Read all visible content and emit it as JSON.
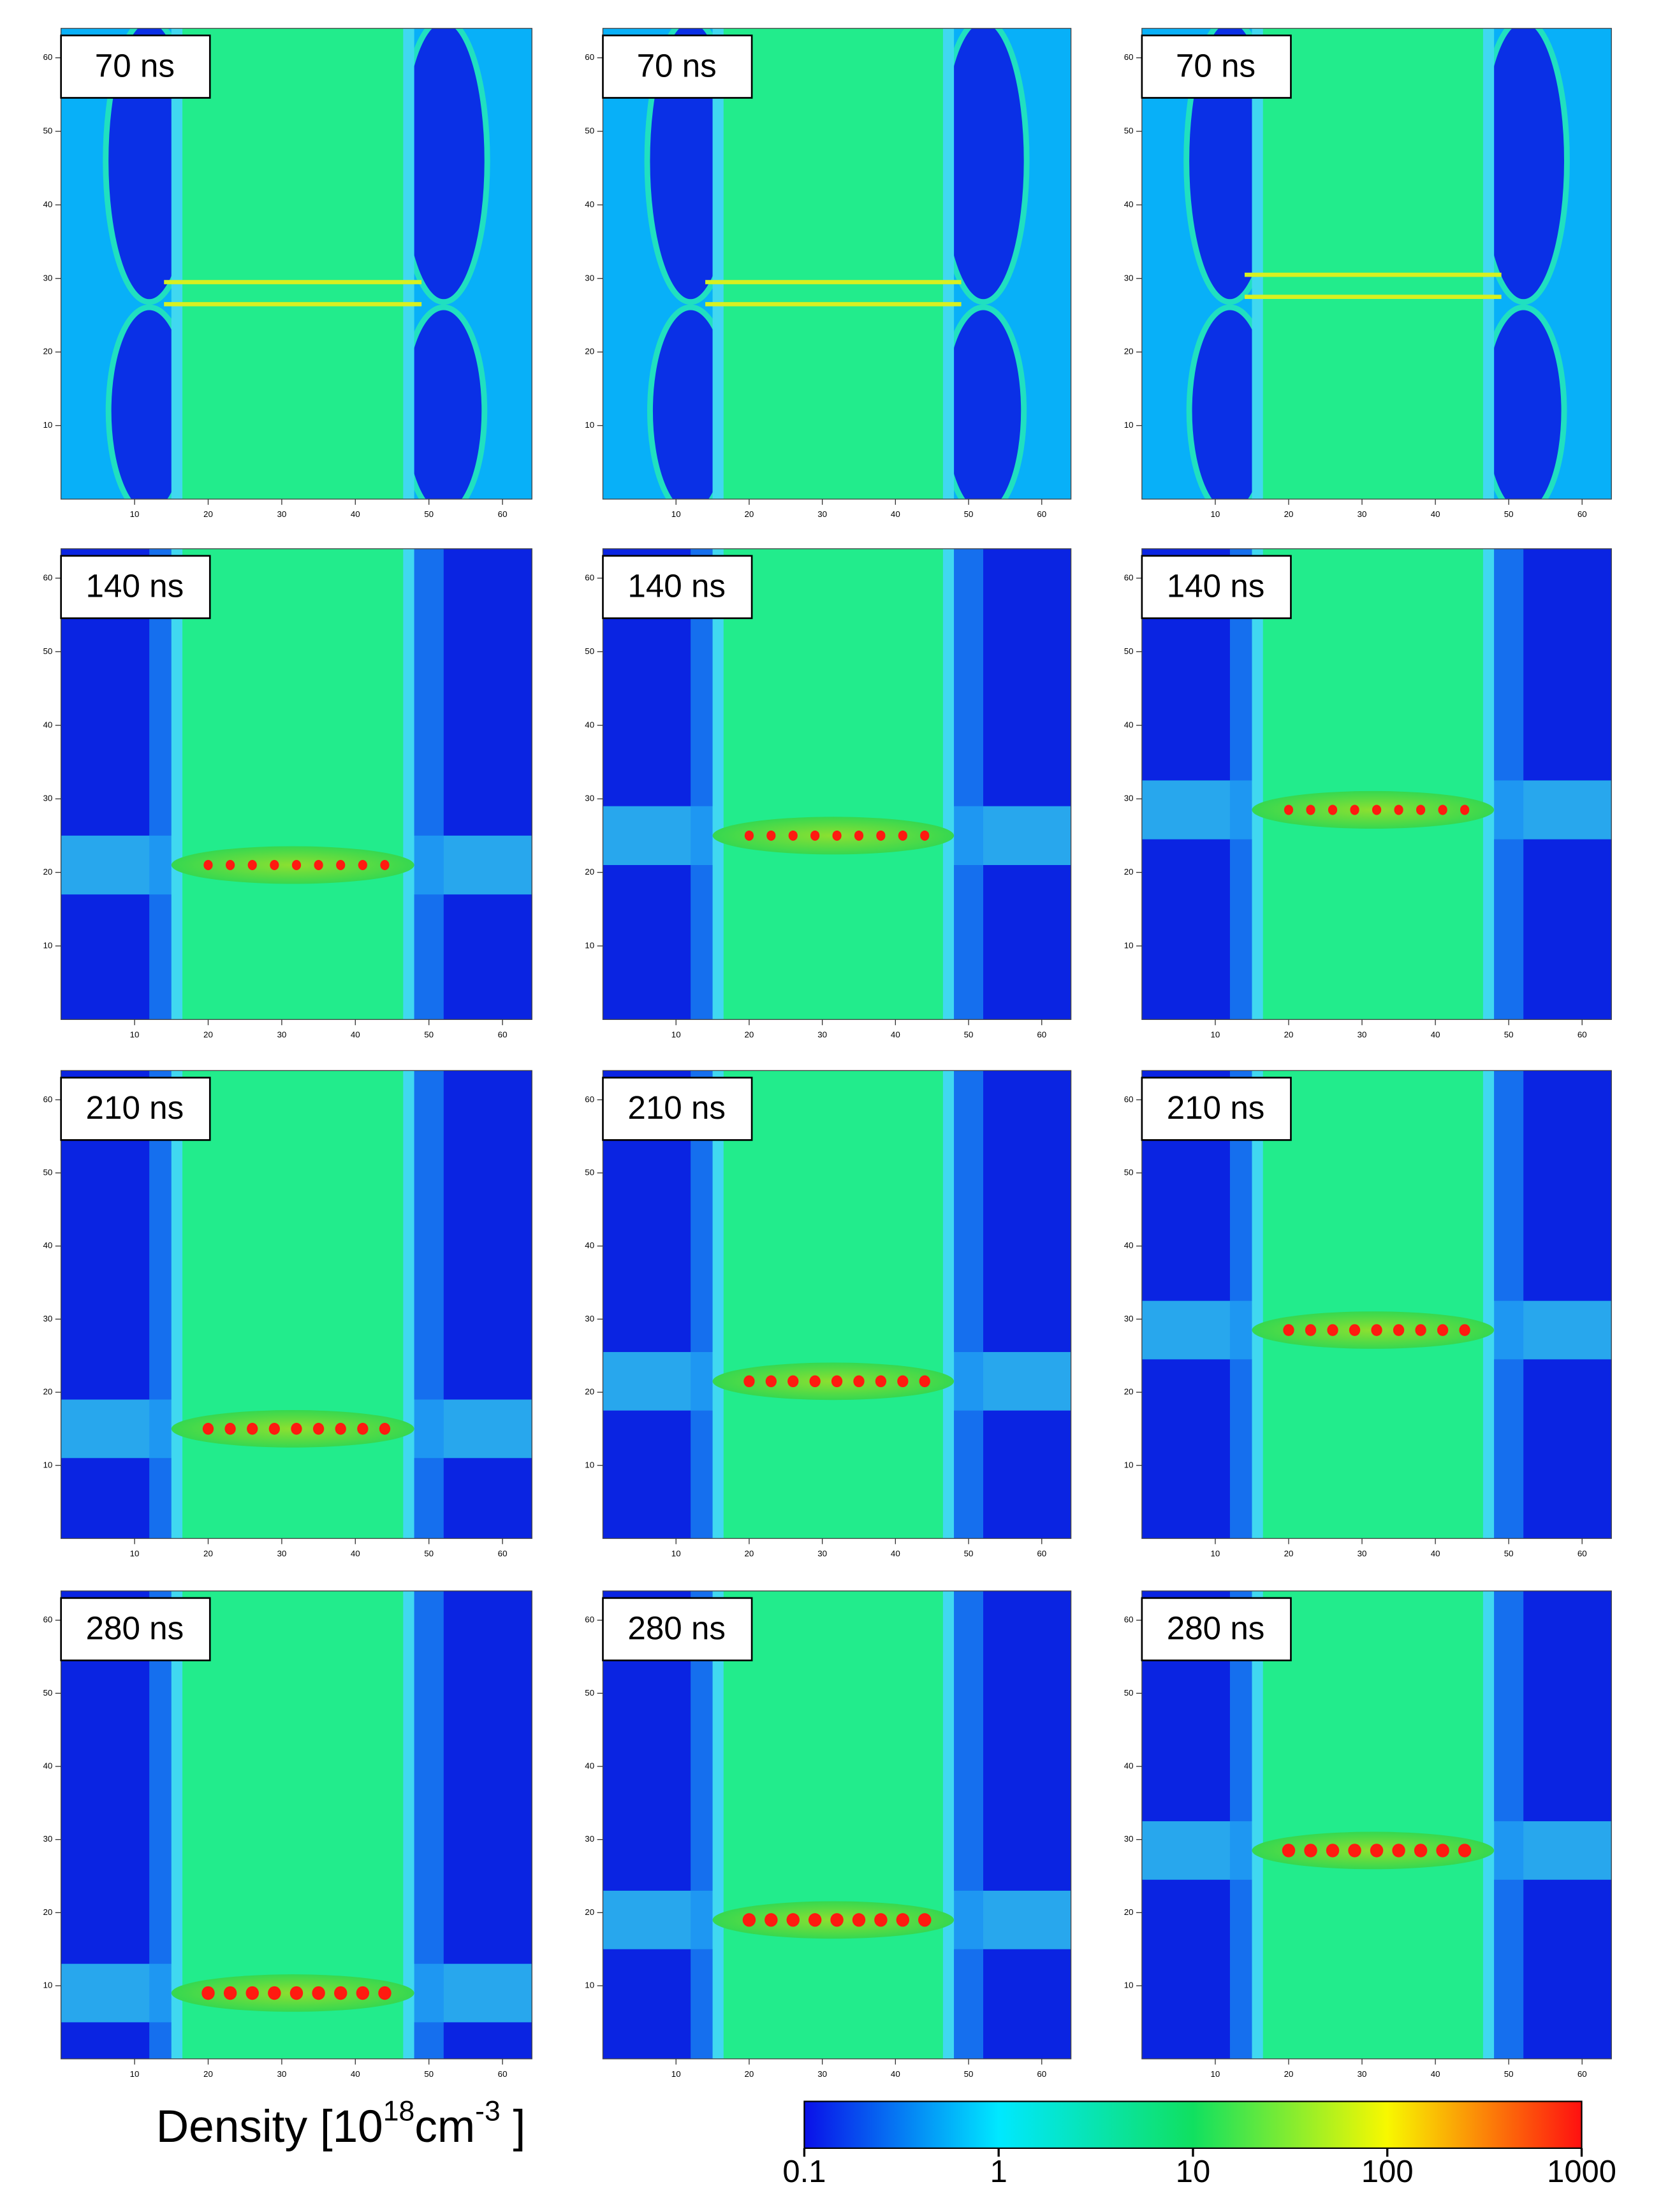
{
  "chart_data": [
    {
      "type": "heatmap",
      "label": "70 ns",
      "xlim": [
        0,
        64
      ],
      "ylim": [
        0,
        64
      ],
      "xticks": [
        10,
        20,
        30,
        40,
        50,
        60
      ],
      "yticks": [
        10,
        20,
        30,
        40,
        50,
        60
      ]
    },
    {
      "type": "heatmap",
      "label": "70 ns",
      "xlim": [
        0,
        64
      ],
      "ylim": [
        0,
        64
      ],
      "xticks": [
        10,
        20,
        30,
        40,
        50,
        60
      ],
      "yticks": [
        10,
        20,
        30,
        40,
        50,
        60
      ]
    },
    {
      "type": "heatmap",
      "label": "70 ns",
      "xlim": [
        0,
        64
      ],
      "ylim": [
        0,
        64
      ],
      "xticks": [
        10,
        20,
        30,
        40,
        50,
        60
      ],
      "yticks": [
        10,
        20,
        30,
        40,
        50,
        60
      ]
    },
    {
      "type": "heatmap",
      "label": "140 ns",
      "xlim": [
        0,
        64
      ],
      "ylim": [
        0,
        64
      ],
      "xticks": [
        10,
        20,
        30,
        40,
        50,
        60
      ],
      "yticks": [
        10,
        20,
        30,
        40,
        50,
        60
      ]
    },
    {
      "type": "heatmap",
      "label": "140 ns",
      "xlim": [
        0,
        64
      ],
      "ylim": [
        0,
        64
      ],
      "xticks": [
        10,
        20,
        30,
        40,
        50,
        60
      ],
      "yticks": [
        10,
        20,
        30,
        40,
        50,
        60
      ]
    },
    {
      "type": "heatmap",
      "label": "140 ns",
      "xlim": [
        0,
        64
      ],
      "ylim": [
        0,
        64
      ],
      "xticks": [
        10,
        20,
        30,
        40,
        50,
        60
      ],
      "yticks": [
        10,
        20,
        30,
        40,
        50,
        60
      ]
    },
    {
      "type": "heatmap",
      "label": "210 ns",
      "xlim": [
        0,
        64
      ],
      "ylim": [
        0,
        64
      ],
      "xticks": [
        10,
        20,
        30,
        40,
        50,
        60
      ],
      "yticks": [
        10,
        20,
        30,
        40,
        50,
        60
      ]
    },
    {
      "type": "heatmap",
      "label": "210 ns",
      "xlim": [
        0,
        64
      ],
      "ylim": [
        0,
        64
      ],
      "xticks": [
        10,
        20,
        30,
        40,
        50,
        60
      ],
      "yticks": [
        10,
        20,
        30,
        40,
        50,
        60
      ]
    },
    {
      "type": "heatmap",
      "label": "210 ns",
      "xlim": [
        0,
        64
      ],
      "ylim": [
        0,
        64
      ],
      "xticks": [
        10,
        20,
        30,
        40,
        50,
        60
      ],
      "yticks": [
        10,
        20,
        30,
        40,
        50,
        60
      ]
    },
    {
      "type": "heatmap",
      "label": "280 ns",
      "xlim": [
        0,
        64
      ],
      "ylim": [
        0,
        64
      ],
      "xticks": [
        10,
        20,
        30,
        40,
        50,
        60
      ],
      "yticks": [
        10,
        20,
        30,
        40,
        50,
        60
      ]
    },
    {
      "type": "heatmap",
      "label": "280 ns",
      "xlim": [
        0,
        64
      ],
      "ylim": [
        0,
        64
      ],
      "xticks": [
        10,
        20,
        30,
        40,
        50,
        60
      ],
      "yticks": [
        10,
        20,
        30,
        40,
        50,
        60
      ]
    },
    {
      "type": "heatmap",
      "label": "280 ns",
      "xlim": [
        0,
        64
      ],
      "ylim": [
        0,
        64
      ],
      "xticks": [
        10,
        20,
        30,
        40,
        50,
        60
      ],
      "yticks": [
        10,
        20,
        30,
        40,
        50,
        60
      ]
    }
  ],
  "colorbar": {
    "label": [
      "Density [10",
      "18",
      "cm",
      "-3",
      " ]"
    ],
    "scale": "log",
    "lim": [
      0.1,
      1000
    ],
    "ticks": [
      0.1,
      1,
      10,
      100,
      1000
    ],
    "colors": [
      "#0a10e8",
      "#00e8ff",
      "#10e060",
      "#f8f800",
      "#ff1010"
    ]
  }
}
